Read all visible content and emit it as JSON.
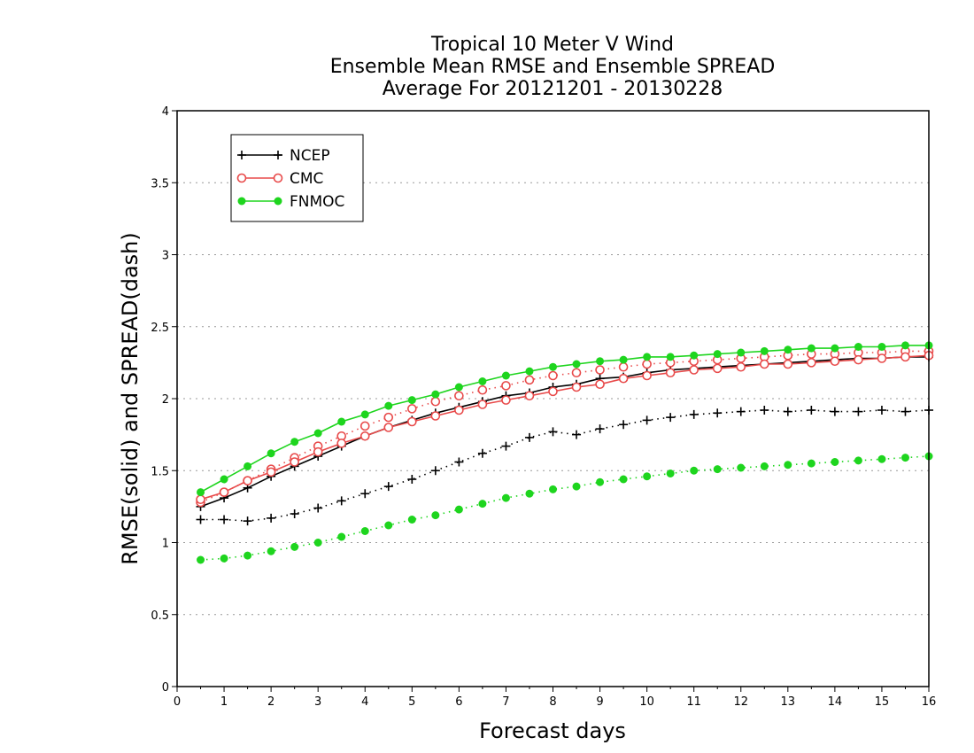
{
  "chart_data": {
    "type": "line",
    "title": [
      "Tropical 10 Meter V Wind",
      "Ensemble Mean RMSE and Ensemble SPREAD",
      "Average For 20121201 - 20130228"
    ],
    "xlabel": "Forecast days",
    "ylabel": "RMSE(solid) and SPREAD(dash)",
    "xlim": [
      0,
      16
    ],
    "ylim": [
      0,
      4
    ],
    "xticks": [
      "0",
      "1",
      "2",
      "3",
      "4",
      "5",
      "6",
      "7",
      "8",
      "9",
      "10",
      "11",
      "12",
      "13",
      "14",
      "15",
      "16"
    ],
    "yticks": [
      "0",
      "0.5",
      "1",
      "1.5",
      "2",
      "2.5",
      "3",
      "3.5",
      "4"
    ],
    "grid": "horizontal-dotted",
    "legend_position": "top-left",
    "x": [
      0.5,
      1,
      1.5,
      2,
      2.5,
      3,
      3.5,
      4,
      4.5,
      5,
      5.5,
      6,
      6.5,
      7,
      7.5,
      8,
      8.5,
      9,
      9.5,
      10,
      10.5,
      11,
      11.5,
      12,
      12.5,
      13,
      13.5,
      14,
      14.5,
      15,
      15.5,
      16
    ],
    "series": [
      {
        "name": "NCEP",
        "color": "#000000",
        "marker": "plus",
        "rmse": [
          1.25,
          1.31,
          1.38,
          1.46,
          1.53,
          1.6,
          1.67,
          1.74,
          1.8,
          1.85,
          1.9,
          1.94,
          1.98,
          2.02,
          2.04,
          2.08,
          2.1,
          2.14,
          2.15,
          2.18,
          2.2,
          2.21,
          2.22,
          2.23,
          2.24,
          2.25,
          2.26,
          2.27,
          2.28,
          2.28,
          2.29,
          2.29
        ],
        "spread": [
          1.16,
          1.16,
          1.15,
          1.17,
          1.2,
          1.24,
          1.29,
          1.34,
          1.39,
          1.44,
          1.5,
          1.56,
          1.62,
          1.67,
          1.73,
          1.77,
          1.75,
          1.79,
          1.82,
          1.85,
          1.87,
          1.89,
          1.9,
          1.91,
          1.92,
          1.91,
          1.92,
          1.91,
          1.91,
          1.92,
          1.91,
          1.92
        ]
      },
      {
        "name": "CMC",
        "color": "#e84a4a",
        "marker": "open-circle",
        "rmse": [
          1.3,
          1.35,
          1.43,
          1.49,
          1.56,
          1.63,
          1.69,
          1.74,
          1.8,
          1.84,
          1.88,
          1.92,
          1.96,
          1.99,
          2.02,
          2.05,
          2.08,
          2.1,
          2.14,
          2.16,
          2.18,
          2.2,
          2.21,
          2.22,
          2.24,
          2.24,
          2.25,
          2.26,
          2.27,
          2.28,
          2.29,
          2.3
        ],
        "spread": [
          1.28,
          1.35,
          1.43,
          1.51,
          1.59,
          1.67,
          1.74,
          1.81,
          1.87,
          1.93,
          1.98,
          2.02,
          2.06,
          2.09,
          2.13,
          2.16,
          2.18,
          2.2,
          2.22,
          2.24,
          2.25,
          2.26,
          2.27,
          2.28,
          2.29,
          2.3,
          2.31,
          2.31,
          2.32,
          2.32,
          2.33,
          2.33
        ]
      },
      {
        "name": "FNMOC",
        "color": "#1ed51e",
        "marker": "filled-circle",
        "rmse": [
          1.35,
          1.44,
          1.53,
          1.62,
          1.7,
          1.76,
          1.84,
          1.89,
          1.95,
          1.99,
          2.03,
          2.08,
          2.12,
          2.16,
          2.19,
          2.22,
          2.24,
          2.26,
          2.27,
          2.29,
          2.29,
          2.3,
          2.31,
          2.32,
          2.33,
          2.34,
          2.35,
          2.35,
          2.36,
          2.36,
          2.37,
          2.37
        ],
        "spread": [
          0.88,
          0.89,
          0.91,
          0.94,
          0.97,
          1.0,
          1.04,
          1.08,
          1.12,
          1.16,
          1.19,
          1.23,
          1.27,
          1.31,
          1.34,
          1.37,
          1.39,
          1.42,
          1.44,
          1.46,
          1.48,
          1.5,
          1.51,
          1.52,
          1.53,
          1.54,
          1.55,
          1.56,
          1.57,
          1.58,
          1.59,
          1.6
        ]
      }
    ]
  }
}
